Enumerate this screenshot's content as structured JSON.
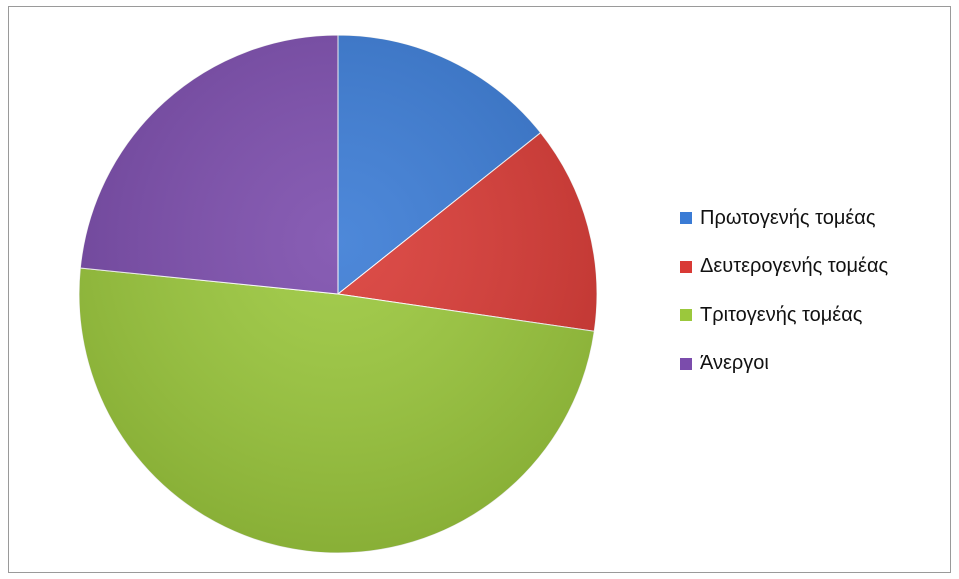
{
  "chart_data": {
    "type": "pie",
    "title": "",
    "legend_position": "right",
    "slices": [
      {
        "label": "Πρωτογενής τομέας",
        "value": 14.3,
        "color": "#3a7bd5"
      },
      {
        "label": "Δευτερογενής τομέας",
        "value": 13.0,
        "color": "#d93a35"
      },
      {
        "label": "Τριτογενής τομέας",
        "value": 49.3,
        "color": "#9bc83c"
      },
      {
        "label": "Άνεργοι",
        "value": 23.4,
        "color": "#7b4cac"
      }
    ]
  }
}
